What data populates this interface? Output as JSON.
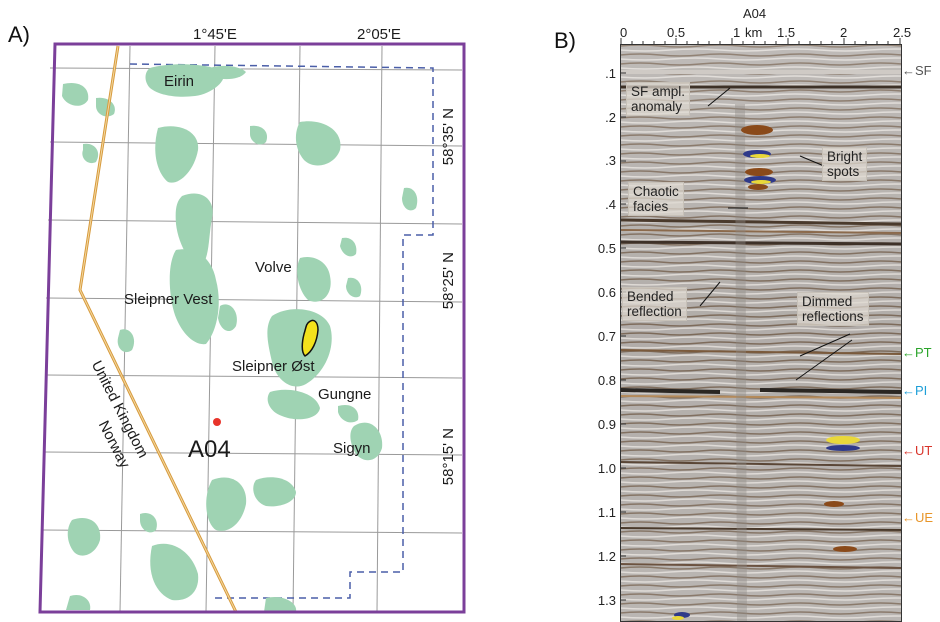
{
  "panel_a": {
    "label": "A)",
    "coords_top": [
      "1°45'E",
      "2°05'E"
    ],
    "coords_right": [
      "58°35' N",
      "58°25' N",
      "58°15' N"
    ],
    "fields": [
      "Eirin",
      "Volve",
      "Sleipner Vest",
      "Sleipner Øst",
      "Gungne",
      "Sigyn"
    ],
    "well": "A04",
    "borders": [
      "Norway",
      "United Kingdom"
    ],
    "colors": {
      "frame": "#7b3f9a",
      "field": "#9fd3b3",
      "border_line": "#d79a3c",
      "licence": "#4a5ea8",
      "well": "#e8342b",
      "highlight": "#f3e21b"
    }
  },
  "panel_b": {
    "label": "B)",
    "well": "A04",
    "x_unit": "km",
    "x_ticks": [
      "0",
      "0.5",
      "1",
      "1.5",
      "2",
      "2.5"
    ],
    "y_ticks": [
      ".1",
      ".2",
      ".3",
      ".4",
      "0.5",
      "0.6",
      "0.7",
      "0.8",
      "0.9",
      "1.0",
      "1.1",
      "1.2",
      "1.3"
    ],
    "annotations": {
      "sf_amp": "SF ampl.\nanomaly",
      "bright": "Bright\nspots",
      "chaotic": "Chaotic\nfacies",
      "bended": "Bended\nreflection",
      "dimmed": "Dimmed\nreflections"
    },
    "horizons": [
      {
        "name": "SF",
        "color": "#555555"
      },
      {
        "name": "PT",
        "color": "#2aa52a"
      },
      {
        "name": "PI",
        "color": "#1e9fd8"
      },
      {
        "name": "UT",
        "color": "#d9342b"
      },
      {
        "name": "UE",
        "color": "#e8962a"
      }
    ]
  }
}
